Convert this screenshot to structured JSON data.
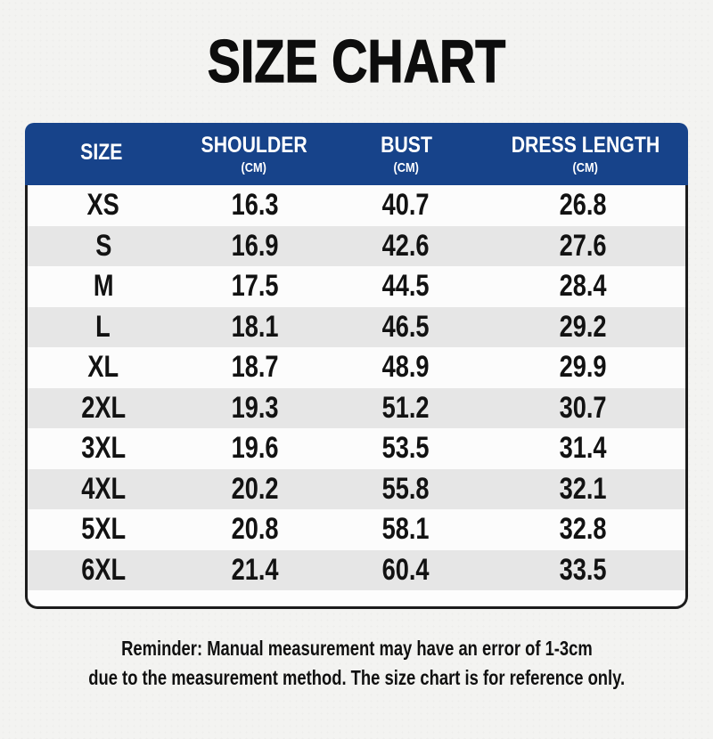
{
  "chart_data": {
    "type": "table",
    "title": "SIZE CHART",
    "columns": [
      {
        "label": "SIZE",
        "unit": ""
      },
      {
        "label": "SHOULDER",
        "unit": "(CM)"
      },
      {
        "label": "BUST",
        "unit": "(CM)"
      },
      {
        "label": "DRESS LENGTH",
        "unit": "(CM)"
      }
    ],
    "rows": [
      [
        "XS",
        "16.3",
        "40.7",
        "26.8"
      ],
      [
        "S",
        "16.9",
        "42.6",
        "27.6"
      ],
      [
        "M",
        "17.5",
        "44.5",
        "28.4"
      ],
      [
        "L",
        "18.1",
        "46.5",
        "29.2"
      ],
      [
        "XL",
        "18.7",
        "48.9",
        "29.9"
      ],
      [
        "2XL",
        "19.3",
        "51.2",
        "30.7"
      ],
      [
        "3XL",
        "19.6",
        "53.5",
        "31.4"
      ],
      [
        "4XL",
        "20.2",
        "55.8",
        "32.1"
      ],
      [
        "5XL",
        "20.8",
        "58.1",
        "32.8"
      ],
      [
        "6XL",
        "21.4",
        "60.4",
        "33.5"
      ]
    ]
  },
  "footer": {
    "line1": "Reminder: Manual measurement may have an error of 1-3cm",
    "line2": "due to the measurement method. The size chart is for reference only."
  },
  "colors": {
    "header_bg": "#17438a",
    "header_text": "#ffffff",
    "row_bg": "#fcfcfc",
    "row_alt_bg": "#e6e6e6",
    "card_border": "#1c1c1c",
    "page_bg": "#f3f3f1",
    "text": "#111111"
  }
}
